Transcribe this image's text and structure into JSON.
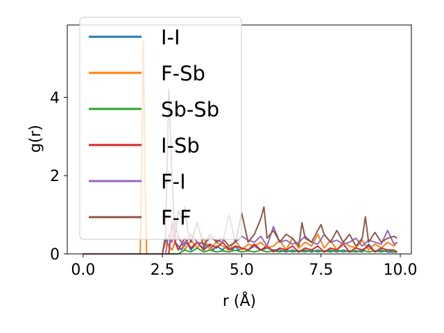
{
  "chart_data": {
    "type": "line",
    "xlabel": "r (Å)",
    "ylabel": "g(r)",
    "xlim": [
      -0.5,
      10.35
    ],
    "ylim": [
      0,
      5.85
    ],
    "xticks": [
      0.0,
      2.5,
      5.0,
      7.5,
      10.0
    ],
    "xtick_labels": [
      "0.0",
      "2.5",
      "5.0",
      "7.5",
      "10.0"
    ],
    "yticks": [
      0,
      2,
      4
    ],
    "ytick_labels": [
      "0",
      "2",
      "4"
    ],
    "legend_position": "upper left",
    "grid": false,
    "series": [
      {
        "name": "I-I",
        "color": "#1f77b4",
        "x": [
          0.0,
          2.5,
          2.6,
          2.7,
          2.8,
          2.9,
          3.0,
          3.1,
          3.2,
          3.3,
          3.4,
          3.5,
          3.6,
          3.7,
          3.8,
          3.9,
          4.0,
          4.1,
          4.2,
          4.3,
          4.4,
          4.5,
          4.6,
          4.7,
          4.8,
          4.9,
          5.0,
          5.2,
          5.4,
          5.6,
          5.8,
          6.0,
          6.2,
          6.4,
          6.6,
          6.8,
          7.0,
          7.2,
          7.4,
          7.6,
          7.8,
          8.0,
          8.2,
          8.4,
          8.6,
          8.8,
          9.0,
          9.2,
          9.4,
          9.6,
          9.8,
          9.9
        ],
        "y": [
          0,
          0,
          0.4,
          0.2,
          0.1,
          0.3,
          0.2,
          0.1,
          0.3,
          0.25,
          0.1,
          0.2,
          0.3,
          0.2,
          0.15,
          0.25,
          0.2,
          0.1,
          0.2,
          0.15,
          0.1,
          0.2,
          0.15,
          0.1,
          0.2,
          0.1,
          0.15,
          0.1,
          0.2,
          0.1,
          0.15,
          0.1,
          0.1,
          0.05,
          0.1,
          0.05,
          0.1,
          0.05,
          0.1,
          0.05,
          0.1,
          0.05,
          0.1,
          0.05,
          0.08,
          0.05,
          0.25,
          0.05,
          0.1,
          0.05,
          0.05,
          0.05
        ]
      },
      {
        "name": "F-Sb",
        "color": "#ff7f0e",
        "x": [
          0.0,
          1.8,
          1.85,
          1.9,
          1.95,
          2.0,
          2.5,
          2.6,
          2.8,
          3.0,
          3.2,
          3.4,
          3.6,
          3.8,
          4.0,
          4.2,
          4.4,
          4.6,
          4.8,
          5.0,
          5.2,
          5.4,
          5.6,
          5.8,
          6.0,
          6.2,
          6.4,
          6.6,
          6.8,
          7.0,
          7.2,
          7.4,
          7.6,
          7.8,
          8.0,
          8.2,
          8.4,
          8.6,
          8.8,
          9.0,
          9.2,
          9.4,
          9.6,
          9.8,
          9.9
        ],
        "y": [
          0,
          0,
          2.5,
          5.45,
          2.0,
          0,
          0,
          0.3,
          0.1,
          0.5,
          0.1,
          0.35,
          0.15,
          0.4,
          0.1,
          0.3,
          0.2,
          0.1,
          0.35,
          0.1,
          0.25,
          0.2,
          0.3,
          0.15,
          0.2,
          0.35,
          0.1,
          0.4,
          0.15,
          0.3,
          0.2,
          0.5,
          0.15,
          0.35,
          0.1,
          0.3,
          0.2,
          0.15,
          0.35,
          0.1,
          0.25,
          0.15,
          0.3,
          0.2,
          0.3
        ]
      },
      {
        "name": "Sb-Sb",
        "color": "#2ca02c",
        "x": [
          0.0,
          3.0,
          3.2,
          3.4,
          3.6,
          3.8,
          4.0,
          4.2,
          4.4,
          4.6,
          4.8,
          5.0,
          5.2,
          5.4,
          5.6,
          5.8,
          6.0,
          6.2,
          6.4,
          6.6,
          6.8,
          7.0,
          7.2,
          7.4,
          7.6,
          7.8,
          8.0,
          8.2,
          8.4,
          8.6,
          8.8,
          9.0,
          9.2,
          9.4,
          9.6,
          9.8,
          9.9
        ],
        "y": [
          0,
          0,
          0.1,
          0.05,
          0.15,
          0.05,
          0.1,
          0.05,
          0.08,
          0.05,
          0.1,
          0.05,
          0.08,
          0.05,
          0.1,
          0.05,
          0.08,
          0.05,
          0.1,
          0.05,
          0.08,
          0.05,
          0.1,
          0.05,
          0.08,
          0.05,
          0.1,
          0.05,
          0.08,
          0.05,
          0.1,
          0.05,
          0.08,
          0.05,
          0.1,
          0.05,
          0.05
        ]
      },
      {
        "name": "I-Sb",
        "color": "#d62728",
        "x": [
          0.0,
          2.7,
          2.8,
          2.9,
          3.0,
          3.2,
          3.4,
          3.6,
          3.8,
          4.0,
          4.2,
          4.4,
          4.6,
          4.8,
          5.0,
          5.2,
          5.4,
          5.6,
          5.8,
          6.0,
          6.2,
          6.4,
          6.6,
          6.8,
          7.0,
          7.2,
          7.4,
          7.6,
          7.8,
          8.0,
          8.2,
          8.4,
          8.6,
          8.8,
          9.0,
          9.2,
          9.4,
          9.6,
          9.8,
          9.9
        ],
        "y": [
          0,
          0,
          0.8,
          0.3,
          0.1,
          0.4,
          0.15,
          0.3,
          0.1,
          0.25,
          0.15,
          0.3,
          0.1,
          0.2,
          0.15,
          0.1,
          0.25,
          0.1,
          0.2,
          0.05,
          0.15,
          0.1,
          0.2,
          0.05,
          0.15,
          0.1,
          0.2,
          0.05,
          0.15,
          0.1,
          0.25,
          0.05,
          0.15,
          0.1,
          0.2,
          0.05,
          0.15,
          0.1,
          0.1,
          0.05
        ]
      },
      {
        "name": "F-I",
        "color": "#9467bd",
        "x": [
          0.0,
          2.6,
          2.7,
          2.8,
          2.9,
          3.0,
          3.2,
          3.4,
          3.6,
          3.8,
          4.0,
          4.2,
          4.4,
          4.6,
          4.8,
          5.0,
          5.2,
          5.4,
          5.6,
          5.8,
          6.0,
          6.2,
          6.4,
          6.6,
          6.8,
          7.0,
          7.2,
          7.4,
          7.6,
          7.8,
          8.0,
          8.2,
          8.4,
          8.6,
          8.8,
          9.0,
          9.2,
          9.4,
          9.6,
          9.8,
          9.9
        ],
        "y": [
          0,
          0,
          0.5,
          0.3,
          0.9,
          0.4,
          0.2,
          0.5,
          0.3,
          0.25,
          0.4,
          0.35,
          0.3,
          1.0,
          0.3,
          0.45,
          0.35,
          0.3,
          0.45,
          0.2,
          0.7,
          0.3,
          0.35,
          0.25,
          0.3,
          0.45,
          0.3,
          0.25,
          0.5,
          0.3,
          0.35,
          0.25,
          0.3,
          0.4,
          0.2,
          0.35,
          0.3,
          0.25,
          0.6,
          0.25,
          0.3
        ]
      },
      {
        "name": "F-F",
        "color": "#8c564b",
        "x": [
          0.0,
          2.5,
          2.6,
          2.7,
          2.8,
          2.9,
          3.0,
          3.1,
          3.2,
          3.3,
          3.4,
          3.6,
          3.8,
          4.0,
          4.2,
          4.4,
          4.6,
          4.8,
          5.0,
          5.2,
          5.4,
          5.6,
          5.7,
          5.8,
          6.0,
          6.2,
          6.4,
          6.6,
          6.8,
          6.9,
          7.0,
          7.2,
          7.4,
          7.5,
          7.6,
          7.8,
          8.0,
          8.2,
          8.4,
          8.6,
          8.8,
          8.9,
          9.0,
          9.2,
          9.4,
          9.6,
          9.8,
          9.9
        ],
        "y": [
          0,
          0,
          0.5,
          4.2,
          2.0,
          0.4,
          1.1,
          0.9,
          1.2,
          0.6,
          0.3,
          0.8,
          0.2,
          0.5,
          0.3,
          0.4,
          0.2,
          0.3,
          1.05,
          0.3,
          0.5,
          0.9,
          1.2,
          0.4,
          0.6,
          0.3,
          0.5,
          0.4,
          0.2,
          0.8,
          0.4,
          0.3,
          0.6,
          0.75,
          0.5,
          0.3,
          0.6,
          0.3,
          0.5,
          0.2,
          0.4,
          0.95,
          0.3,
          0.55,
          0.3,
          0.4,
          0.45,
          0.4
        ]
      }
    ]
  }
}
